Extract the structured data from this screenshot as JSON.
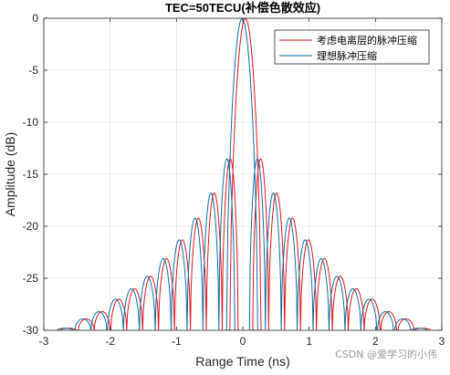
{
  "chart_data": {
    "type": "line",
    "title": "TEC=50TECU(补偿色散效应)",
    "xlabel": "Range Time (ns)",
    "ylabel": "Amplitude (dB)",
    "xlim": [
      -3,
      3
    ],
    "ylim": [
      -30,
      0
    ],
    "xticks": [
      -3,
      -2,
      -1,
      0,
      1,
      2,
      3
    ],
    "xtick_labels": [
      "-3",
      "-2",
      "-1",
      "0",
      "1",
      "2",
      "3"
    ],
    "yticks": [
      0,
      -5,
      -10,
      -15,
      -20,
      -25,
      -30
    ],
    "ytick_labels": [
      "0",
      "-5",
      "-10",
      "-15",
      "-20",
      "-25",
      "-30"
    ],
    "grid": true,
    "legend_position": "top-right",
    "series": [
      {
        "name": "考虑电离层的脉冲压缩",
        "color": "#e8141e",
        "peak_time": 0.04,
        "x": [
          -2.63,
          -2.36,
          -2.12,
          -1.87,
          -1.63,
          -1.39,
          -1.15,
          -0.91,
          -0.67,
          -0.43,
          -0.19,
          0.04,
          0.27,
          0.51,
          0.75,
          0.99,
          1.23,
          1.47,
          1.71,
          1.95,
          2.2,
          2.46,
          2.71
        ],
        "y": [
          -29.8,
          -28.9,
          -28.2,
          -27.0,
          -26.0,
          -24.8,
          -23.1,
          -21.3,
          -19.2,
          -16.8,
          -13.5,
          0,
          -13.5,
          -16.8,
          -19.2,
          -21.3,
          -23.1,
          -24.8,
          -26.0,
          -27.0,
          -28.2,
          -28.9,
          -29.8
        ]
      },
      {
        "name": "理想脉冲压缩",
        "color": "#0c6ea8",
        "peak_time": -0.01,
        "x": [
          -2.68,
          -2.41,
          -2.17,
          -1.92,
          -1.68,
          -1.44,
          -1.2,
          -0.96,
          -0.72,
          -0.48,
          -0.24,
          -0.01,
          0.22,
          0.46,
          0.7,
          0.94,
          1.18,
          1.42,
          1.66,
          1.9,
          2.15,
          2.41,
          2.66
        ],
        "y": [
          -29.8,
          -28.9,
          -28.2,
          -27.0,
          -26.0,
          -24.8,
          -23.1,
          -21.3,
          -19.2,
          -16.8,
          -13.5,
          0,
          -13.5,
          -16.8,
          -19.2,
          -21.3,
          -23.1,
          -24.8,
          -26.0,
          -27.0,
          -28.2,
          -28.9,
          -29.8
        ]
      }
    ]
  },
  "watermark": "CSDN @爱学习的小伟"
}
